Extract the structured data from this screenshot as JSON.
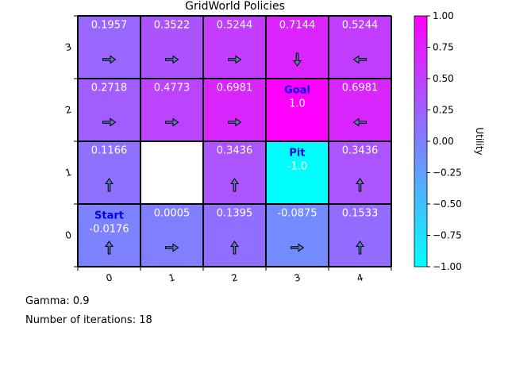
{
  "chart_data": {
    "type": "heatmap",
    "title": "GridWorld Policies",
    "x_ticks": [
      "0",
      "1",
      "2",
      "3",
      "4"
    ],
    "y_ticks": [
      "0",
      "1",
      "2",
      "3"
    ],
    "rows": [
      {
        "y": 3,
        "values": [
          0.1957,
          0.3522,
          0.5244,
          0.7144,
          0.5244
        ],
        "labels": [
          "0.1957",
          "0.3522",
          "0.5244",
          "0.7144",
          "0.5244"
        ],
        "policy": [
          "right",
          "right",
          "right",
          "down",
          "left"
        ],
        "names": [
          "",
          "",
          "",
          "",
          ""
        ]
      },
      {
        "y": 2,
        "values": [
          0.2718,
          0.4773,
          0.6981,
          1.0,
          0.6981
        ],
        "labels": [
          "0.2718",
          "0.4773",
          "0.6981",
          "1.0",
          "0.6981"
        ],
        "policy": [
          "right",
          "right",
          "right",
          null,
          "left"
        ],
        "names": [
          "",
          "",
          "",
          "Goal",
          ""
        ]
      },
      {
        "y": 1,
        "values": [
          0.1166,
          null,
          0.3436,
          -1.0,
          0.3436
        ],
        "labels": [
          "0.1166",
          "",
          "0.3436",
          "-1.0",
          "0.3436"
        ],
        "policy": [
          "up",
          null,
          "up",
          null,
          "up"
        ],
        "names": [
          "",
          "",
          "",
          "Pit",
          ""
        ]
      },
      {
        "y": 0,
        "values": [
          -0.0176,
          0.0005,
          0.1395,
          -0.0875,
          0.1533
        ],
        "labels": [
          "-0.0176",
          "0.0005",
          "0.1395",
          "-0.0875",
          "0.1533"
        ],
        "policy": [
          "up",
          "right",
          "up",
          "right",
          "up"
        ],
        "names": [
          "Start",
          "",
          "",
          "",
          ""
        ]
      }
    ],
    "colorbar": {
      "label": "Utility",
      "range": [
        -1.0,
        1.0
      ],
      "ticks": [
        "1.00",
        "0.75",
        "0.50",
        "0.25",
        "0.00",
        "−0.25",
        "−0.50",
        "−0.75",
        "−1.00"
      ],
      "tick_values": [
        1.0,
        0.75,
        0.5,
        0.25,
        0.0,
        -0.25,
        -0.5,
        -0.75,
        -1.0
      ],
      "colormap": [
        "#00ffff",
        "#ff00ff"
      ]
    },
    "grid": true
  },
  "info": {
    "gamma": "Gamma: 0.9",
    "iterations": "Number of iterations: 18"
  },
  "colors": {
    "cell_text": "#ffffff",
    "special_label": "#0000ff",
    "arrow_fill": "#5b78b8",
    "empty_cell": "#ffffff"
  }
}
